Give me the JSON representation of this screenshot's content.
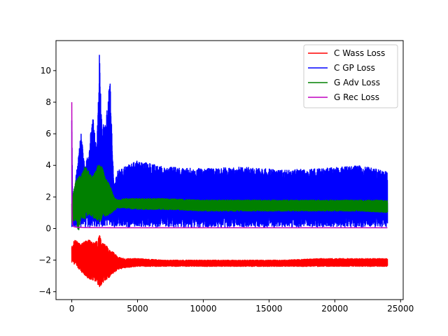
{
  "chart_data": {
    "type": "line",
    "title": "",
    "xlabel": "",
    "ylabel": "",
    "xlim": [
      -1200,
      25200
    ],
    "ylim": [
      -4.5,
      11.9
    ],
    "xticks": [
      0,
      5000,
      10000,
      15000,
      20000,
      25000
    ],
    "xtick_labels": [
      "0",
      "5000",
      "10000",
      "15000",
      "20000",
      "25000"
    ],
    "yticks": [
      -4,
      -2,
      0,
      2,
      4,
      6,
      8,
      10
    ],
    "ytick_labels": [
      "−4",
      "−2",
      "0",
      "2",
      "4",
      "6",
      "8",
      "10"
    ],
    "grid": false,
    "legend_position": "top-right",
    "series": [
      {
        "name": "C Wass Loss",
        "color": "#ff0000",
        "x": [
          0,
          50,
          150,
          300,
          500,
          700,
          1000,
          1300,
          1600,
          1900,
          2100,
          2300,
          2600,
          2900,
          3200,
          3500,
          4000,
          5000,
          7000,
          10000,
          13000,
          16000,
          19000,
          22000,
          24000
        ],
        "y_upper": [
          -0.9,
          -1.2,
          -0.8,
          -0.7,
          -0.9,
          -1.0,
          -0.8,
          -0.7,
          -0.9,
          -0.8,
          -0.4,
          -0.9,
          -1.0,
          -1.4,
          -1.5,
          -1.8,
          -1.9,
          -1.9,
          -2.0,
          -2.0,
          -2.0,
          -2.0,
          -1.9,
          -1.9,
          -1.9
        ],
        "y_lower": [
          -2.2,
          -2.0,
          -2.3,
          -2.2,
          -2.6,
          -2.8,
          -3.0,
          -3.2,
          -3.3,
          -3.4,
          -3.9,
          -3.5,
          -3.3,
          -3.1,
          -2.8,
          -2.6,
          -2.5,
          -2.4,
          -2.4,
          -2.4,
          -2.4,
          -2.4,
          -2.4,
          -2.4,
          -2.4
        ]
      },
      {
        "name": "C GP Loss",
        "color": "#0000ff",
        "x": [
          0,
          50,
          150,
          300,
          500,
          700,
          1000,
          1300,
          1600,
          1900,
          2100,
          2300,
          2600,
          2900,
          3200,
          3500,
          4000,
          5000,
          7000,
          10000,
          13000,
          16000,
          19000,
          22000,
          24000
        ],
        "y_upper": [
          8.8,
          2.5,
          2.0,
          3.2,
          4.5,
          6.1,
          3.9,
          5.0,
          7.3,
          5.0,
          11.2,
          6.5,
          6.9,
          9.6,
          2.7,
          3.7,
          3.9,
          4.3,
          3.9,
          3.8,
          3.9,
          3.7,
          3.8,
          4.0,
          3.6
        ],
        "y_lower": [
          0.1,
          0.1,
          0.1,
          0.1,
          0.1,
          0.1,
          0.1,
          0.1,
          0.1,
          0.1,
          0.1,
          0.1,
          0.1,
          0.1,
          0.1,
          0.1,
          0.1,
          0.1,
          0.1,
          0.1,
          0.1,
          0.1,
          0.1,
          0.1,
          0.1
        ]
      },
      {
        "name": "G Adv Loss",
        "color": "#008000",
        "x": [
          0,
          50,
          150,
          300,
          500,
          700,
          1000,
          1300,
          1600,
          1900,
          2100,
          2300,
          2600,
          2900,
          3200,
          3500,
          4000,
          5000,
          7000,
          10000,
          13000,
          16000,
          19000,
          22000,
          24000
        ],
        "y_upper": [
          2.0,
          1.8,
          2.5,
          3.0,
          3.4,
          3.3,
          4.0,
          3.6,
          3.3,
          3.8,
          4.3,
          3.9,
          3.2,
          2.8,
          2.0,
          1.8,
          1.9,
          1.9,
          1.9,
          1.8,
          1.8,
          1.8,
          1.8,
          1.8,
          1.8
        ],
        "y_lower": [
          0.1,
          0.6,
          0.4,
          0.5,
          -0.2,
          0.7,
          0.6,
          0.9,
          0.7,
          0.5,
          0.4,
          0.6,
          0.8,
          0.9,
          1.1,
          1.3,
          1.3,
          1.2,
          1.2,
          1.1,
          1.1,
          1.1,
          1.1,
          1.1,
          1.0
        ]
      },
      {
        "name": "G Rec Loss",
        "color": "#bf00bf",
        "x": [
          0,
          20,
          60,
          150,
          400,
          1000,
          3000,
          8000,
          15000,
          24000
        ],
        "y": [
          8.0,
          1.0,
          0.25,
          0.12,
          0.08,
          0.06,
          0.05,
          0.05,
          0.05,
          0.05
        ]
      }
    ]
  }
}
